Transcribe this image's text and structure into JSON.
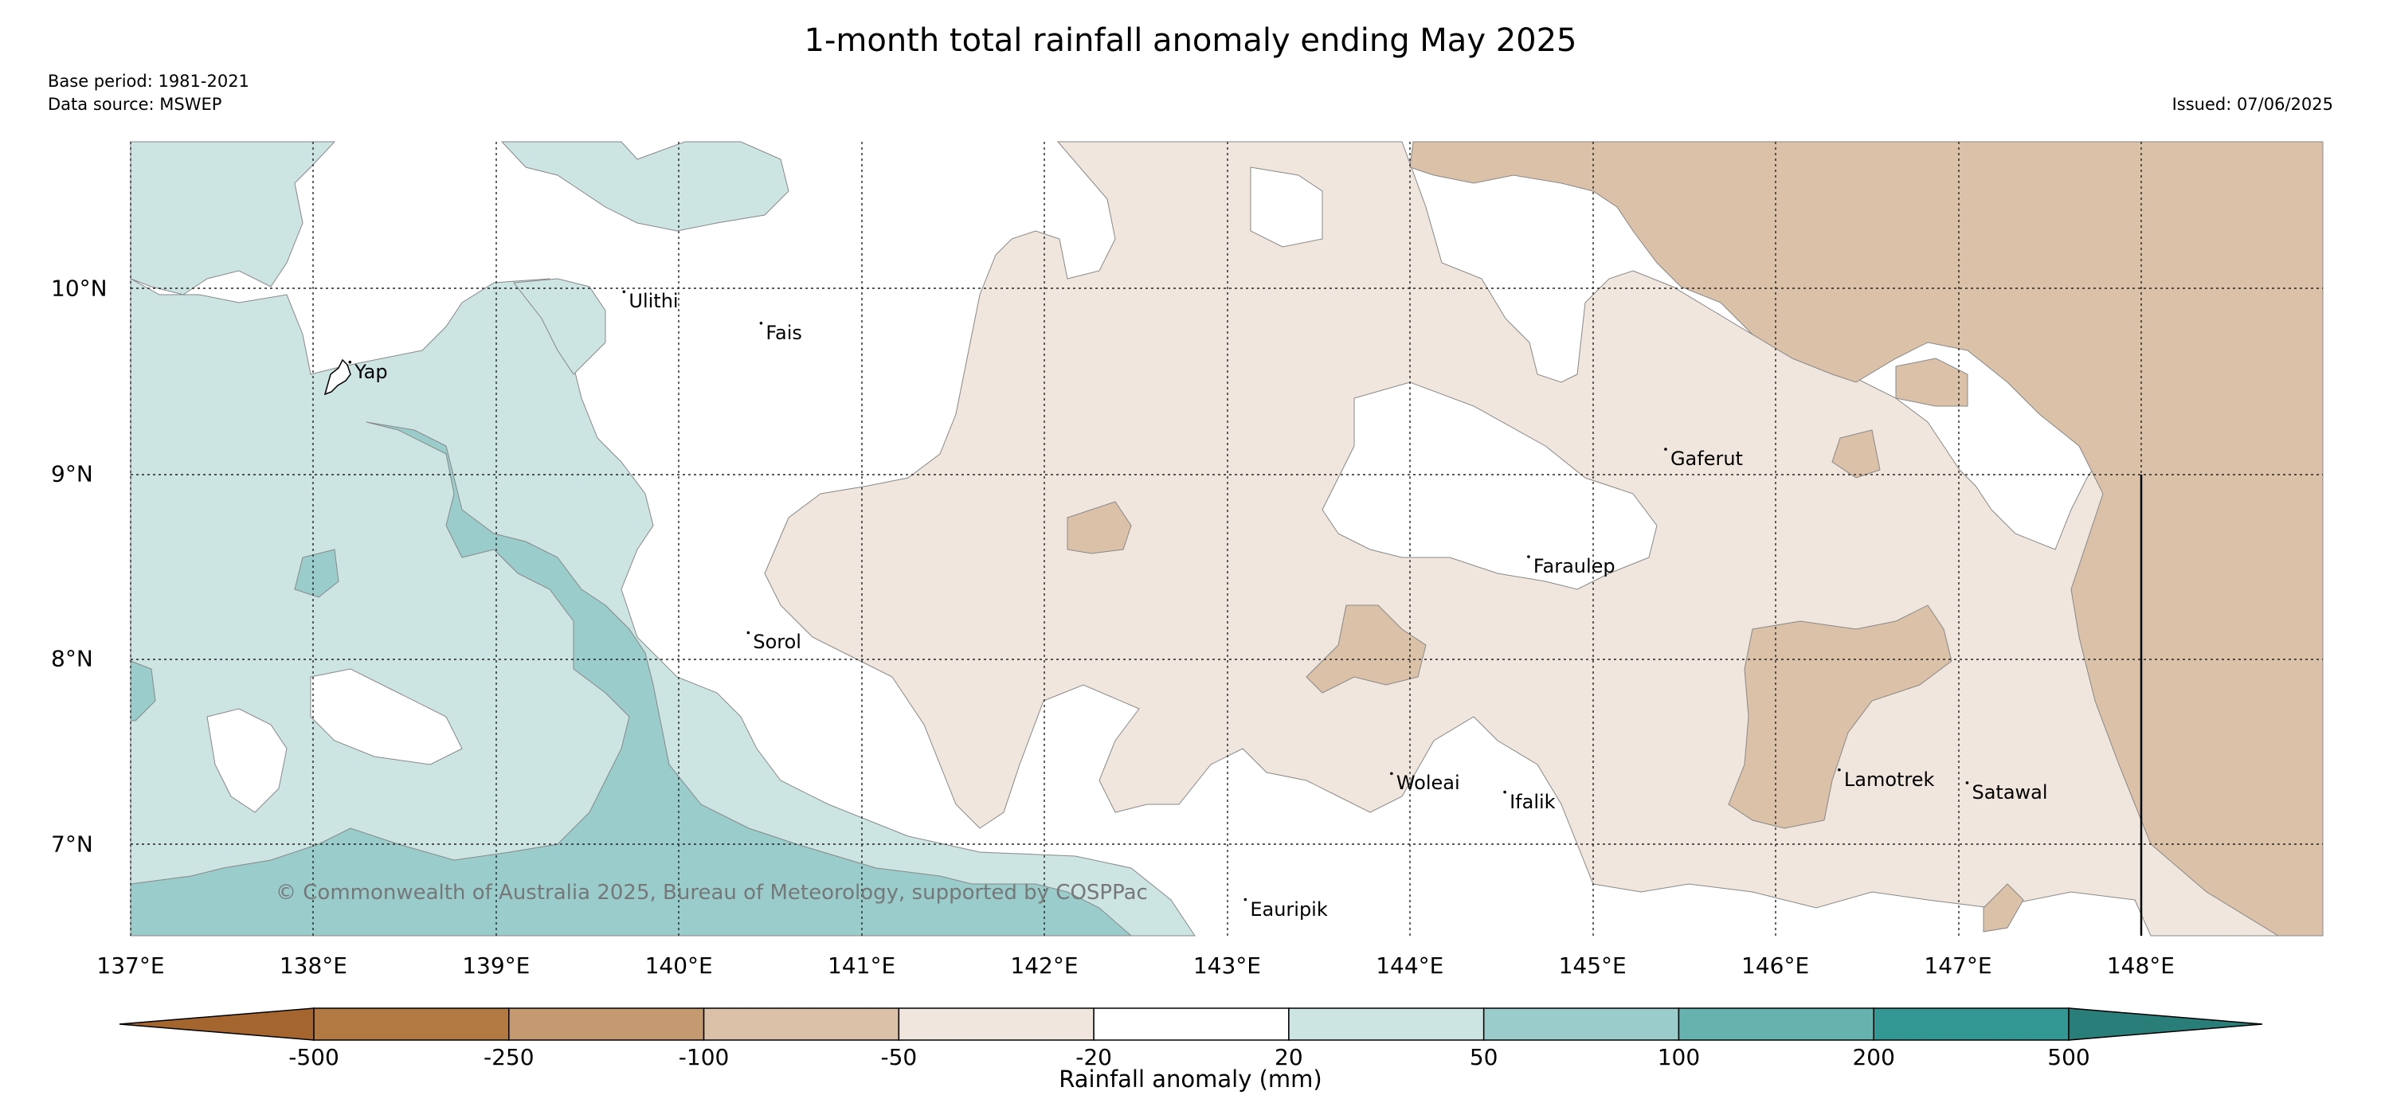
{
  "title": "1-month total rainfall anomaly ending May 2025",
  "base_period": "Base period: 1981-2021",
  "data_source": "Data source: MSWEP",
  "issued": "Issued: 07/06/2025",
  "watermark": "© Commonwealth of Australia 2025, Bureau of Meteorology, supported by COSPPac",
  "colorbar": {
    "title": "Rainfall anomaly (mm)",
    "ticks": [
      "-500",
      "-250",
      "-100",
      "-50",
      "-20",
      "20",
      "50",
      "100",
      "200",
      "500"
    ],
    "colors": [
      "#a5652e",
      "#b27a42",
      "#c69a71",
      "#dbc1a8",
      "#f0e6dd",
      "#ffffff",
      "#cce5e3",
      "#99cccb",
      "#66b2af",
      "#339894",
      "#2a7e7a"
    ]
  },
  "map": {
    "lon_labels": [
      "137°E",
      "138°E",
      "139°E",
      "140°E",
      "141°E",
      "142°E",
      "143°E",
      "144°E",
      "145°E",
      "146°E",
      "147°E",
      "148°E"
    ],
    "lat_labels": [
      "10°N",
      "9°N",
      "8°N",
      "7°N"
    ],
    "islands": [
      {
        "name": "Yap",
        "lon": 138.2,
        "lat": 9.55
      },
      {
        "name": "Ulithi",
        "lon": 139.7,
        "lat": 9.93
      },
      {
        "name": "Fais",
        "lon": 140.45,
        "lat": 9.76
      },
      {
        "name": "Sorol",
        "lon": 140.38,
        "lat": 8.09
      },
      {
        "name": "Gaferut",
        "lon": 145.4,
        "lat": 9.08
      },
      {
        "name": "Faraulep",
        "lon": 144.65,
        "lat": 8.5
      },
      {
        "name": "Woleai",
        "lon": 143.9,
        "lat": 7.33
      },
      {
        "name": "Ifalik",
        "lon": 144.52,
        "lat": 7.23
      },
      {
        "name": "Lamotrek",
        "lon": 146.35,
        "lat": 7.35
      },
      {
        "name": "Satawal",
        "lon": 147.05,
        "lat": 7.28
      },
      {
        "name": "Eauripik",
        "lon": 143.1,
        "lat": 6.65
      }
    ]
  }
}
